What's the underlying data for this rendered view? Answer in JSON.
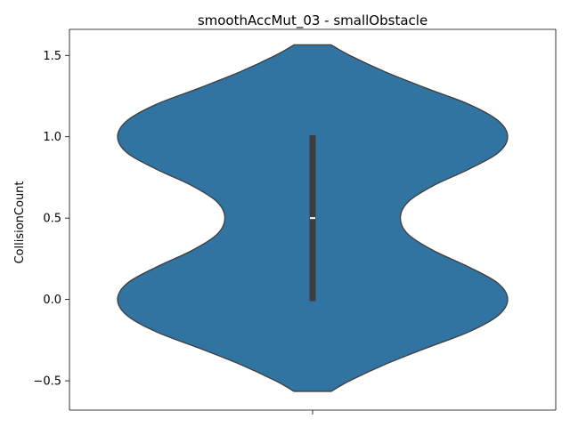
{
  "chart_data": {
    "type": "violin",
    "title": "smoothAccMut_03 - smallObstacle",
    "xlabel": "",
    "ylabel": "CollisionCount",
    "ylim": [
      -0.68,
      1.66
    ],
    "yticks": [
      -0.5,
      0.0,
      0.5,
      1.0,
      1.5
    ],
    "ytick_labels": [
      "−0.5",
      "0.0",
      "0.5",
      "1.0",
      "1.5"
    ],
    "xtick_labels": [
      ""
    ],
    "grid": false,
    "violin": {
      "support_min": -0.565,
      "support_max": 1.565,
      "density_profile": [
        {
          "y": -0.565,
          "half_width": 0.095
        },
        {
          "y": -0.5,
          "half_width": 0.19
        },
        {
          "y": -0.4,
          "half_width": 0.37
        },
        {
          "y": -0.3,
          "half_width": 0.58
        },
        {
          "y": -0.2,
          "half_width": 0.8
        },
        {
          "y": -0.1,
          "half_width": 0.95
        },
        {
          "y": 0.0,
          "half_width": 1.0
        },
        {
          "y": 0.1,
          "half_width": 0.95
        },
        {
          "y": 0.2,
          "half_width": 0.8
        },
        {
          "y": 0.3,
          "half_width": 0.62
        },
        {
          "y": 0.4,
          "half_width": 0.49
        },
        {
          "y": 0.5,
          "half_width": 0.45
        },
        {
          "y": 0.6,
          "half_width": 0.49
        },
        {
          "y": 0.7,
          "half_width": 0.62
        },
        {
          "y": 0.8,
          "half_width": 0.8
        },
        {
          "y": 0.9,
          "half_width": 0.95
        },
        {
          "y": 1.0,
          "half_width": 1.0
        },
        {
          "y": 1.1,
          "half_width": 0.95
        },
        {
          "y": 1.2,
          "half_width": 0.8
        },
        {
          "y": 1.3,
          "half_width": 0.58
        },
        {
          "y": 1.4,
          "half_width": 0.37
        },
        {
          "y": 1.5,
          "half_width": 0.19
        },
        {
          "y": 1.565,
          "half_width": 0.095
        }
      ],
      "box": {
        "q1": -0.01,
        "median": 0.5,
        "q3": 1.01
      },
      "fill_color": "#3274a1",
      "edge_color": "#3d3d3d",
      "box_color": "#3d3d3d",
      "median_color": "#ffffff"
    }
  }
}
